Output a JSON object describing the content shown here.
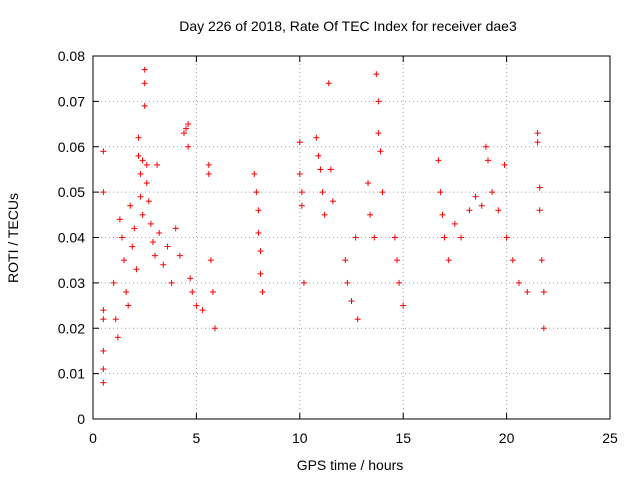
{
  "chart_data": {
    "type": "scatter",
    "title": "Day 226 of 2018, Rate Of TEC Index for receiver dae3",
    "xlabel": "GPS time / hours",
    "ylabel": "ROTI / TECUs",
    "xlim": [
      0,
      25
    ],
    "ylim": [
      0,
      0.08
    ],
    "xticks": [
      0,
      5,
      10,
      15,
      20,
      25
    ],
    "yticks": [
      0,
      0.01,
      0.02,
      0.03,
      0.04,
      0.05,
      0.06,
      0.07,
      0.08
    ],
    "xtick_labels": [
      "0",
      "5",
      "10",
      "15",
      "20",
      "25"
    ],
    "ytick_labels": [
      "0",
      "0.01",
      "0.02",
      "0.03",
      "0.04",
      "0.05",
      "0.06",
      "0.07",
      "0.08"
    ],
    "grid": true,
    "marker": "+",
    "color": "#ff0000",
    "series": [
      {
        "points": [
          [
            0.5,
            0.059
          ],
          [
            0.5,
            0.05
          ],
          [
            0.5,
            0.024
          ],
          [
            0.5,
            0.022
          ],
          [
            0.5,
            0.015
          ],
          [
            0.5,
            0.011
          ],
          [
            0.5,
            0.008
          ],
          [
            1.0,
            0.03
          ],
          [
            1.1,
            0.022
          ],
          [
            1.2,
            0.018
          ],
          [
            1.3,
            0.044
          ],
          [
            1.4,
            0.04
          ],
          [
            1.5,
            0.035
          ],
          [
            1.6,
            0.028
          ],
          [
            1.7,
            0.025
          ],
          [
            1.8,
            0.047
          ],
          [
            1.9,
            0.038
          ],
          [
            2.0,
            0.042
          ],
          [
            2.1,
            0.033
          ],
          [
            2.2,
            0.058
          ],
          [
            2.2,
            0.062
          ],
          [
            2.3,
            0.054
          ],
          [
            2.3,
            0.049
          ],
          [
            2.4,
            0.045
          ],
          [
            2.4,
            0.057
          ],
          [
            2.5,
            0.077
          ],
          [
            2.5,
            0.074
          ],
          [
            2.5,
            0.069
          ],
          [
            2.6,
            0.056
          ],
          [
            2.6,
            0.052
          ],
          [
            2.7,
            0.048
          ],
          [
            2.8,
            0.043
          ],
          [
            2.9,
            0.039
          ],
          [
            3.0,
            0.036
          ],
          [
            3.1,
            0.056
          ],
          [
            3.2,
            0.041
          ],
          [
            3.4,
            0.034
          ],
          [
            3.6,
            0.038
          ],
          [
            3.8,
            0.03
          ],
          [
            4.0,
            0.042
          ],
          [
            4.2,
            0.036
          ],
          [
            4.4,
            0.063
          ],
          [
            4.5,
            0.064
          ],
          [
            4.6,
            0.065
          ],
          [
            4.6,
            0.06
          ],
          [
            4.7,
            0.031
          ],
          [
            4.8,
            0.028
          ],
          [
            5.0,
            0.025
          ],
          [
            5.3,
            0.024
          ],
          [
            5.6,
            0.056
          ],
          [
            5.6,
            0.054
          ],
          [
            5.7,
            0.035
          ],
          [
            5.8,
            0.028
          ],
          [
            5.9,
            0.02
          ],
          [
            7.8,
            0.054
          ],
          [
            7.9,
            0.05
          ],
          [
            8.0,
            0.046
          ],
          [
            8.0,
            0.041
          ],
          [
            8.1,
            0.037
          ],
          [
            8.1,
            0.032
          ],
          [
            8.2,
            0.028
          ],
          [
            10.0,
            0.061
          ],
          [
            10.0,
            0.054
          ],
          [
            10.1,
            0.05
          ],
          [
            10.1,
            0.047
          ],
          [
            10.2,
            0.03
          ],
          [
            10.8,
            0.062
          ],
          [
            10.9,
            0.058
          ],
          [
            11.0,
            0.055
          ],
          [
            11.1,
            0.05
          ],
          [
            11.2,
            0.045
          ],
          [
            11.4,
            0.074
          ],
          [
            11.5,
            0.055
          ],
          [
            11.6,
            0.048
          ],
          [
            12.2,
            0.035
          ],
          [
            12.3,
            0.03
          ],
          [
            12.5,
            0.026
          ],
          [
            12.7,
            0.04
          ],
          [
            12.8,
            0.022
          ],
          [
            13.3,
            0.052
          ],
          [
            13.4,
            0.045
          ],
          [
            13.6,
            0.04
          ],
          [
            13.7,
            0.076
          ],
          [
            13.8,
            0.07
          ],
          [
            13.8,
            0.063
          ],
          [
            13.9,
            0.059
          ],
          [
            14.0,
            0.05
          ],
          [
            14.6,
            0.04
          ],
          [
            14.7,
            0.035
          ],
          [
            14.8,
            0.03
          ],
          [
            15.0,
            0.025
          ],
          [
            16.7,
            0.057
          ],
          [
            16.8,
            0.05
          ],
          [
            16.9,
            0.045
          ],
          [
            17.0,
            0.04
          ],
          [
            17.2,
            0.035
          ],
          [
            17.5,
            0.043
          ],
          [
            17.8,
            0.04
          ],
          [
            18.2,
            0.046
          ],
          [
            18.5,
            0.049
          ],
          [
            18.8,
            0.047
          ],
          [
            19.0,
            0.06
          ],
          [
            19.1,
            0.057
          ],
          [
            19.3,
            0.05
          ],
          [
            19.6,
            0.046
          ],
          [
            19.9,
            0.056
          ],
          [
            20.0,
            0.04
          ],
          [
            20.3,
            0.035
          ],
          [
            20.6,
            0.03
          ],
          [
            21.0,
            0.028
          ],
          [
            21.5,
            0.063
          ],
          [
            21.5,
            0.061
          ],
          [
            21.6,
            0.051
          ],
          [
            21.6,
            0.046
          ],
          [
            21.7,
            0.035
          ],
          [
            21.8,
            0.028
          ],
          [
            21.8,
            0.02
          ]
        ]
      }
    ]
  }
}
